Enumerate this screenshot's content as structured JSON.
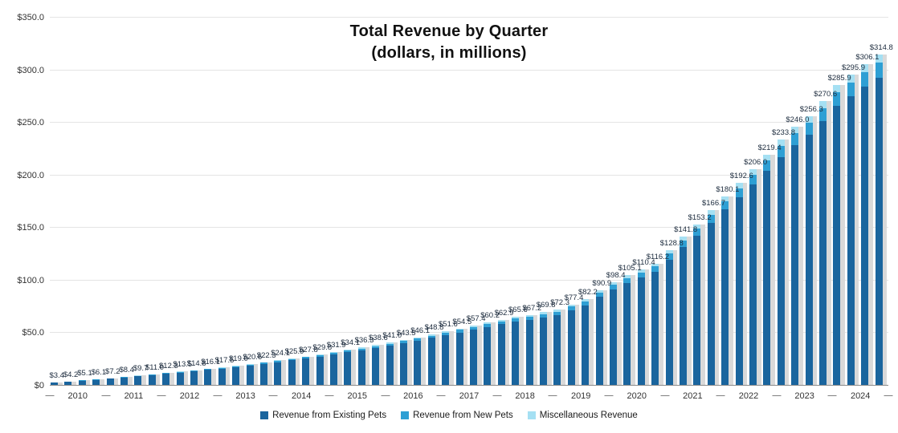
{
  "title": {
    "line1": "Total Revenue by Quarter",
    "line2": "(dollars, in millions)"
  },
  "y_axis": {
    "ticks": [
      {
        "label": "$350.0",
        "value": 350
      },
      {
        "label": "$300.0",
        "value": 300
      },
      {
        "label": "$250.0",
        "value": 250
      },
      {
        "label": "$200.0",
        "value": 200
      },
      {
        "label": "$150.0",
        "value": 150
      },
      {
        "label": "$100.0",
        "value": 100
      },
      {
        "label": "$50.0",
        "value": 50
      },
      {
        "label": "$0",
        "value": 0
      }
    ]
  },
  "x_axis": {
    "years": [
      "2010",
      "2011",
      "2012",
      "2013",
      "2014",
      "2015",
      "2016",
      "2017",
      "2018",
      "2019",
      "2020",
      "2021",
      "2022",
      "2023",
      "2024"
    ]
  },
  "legend": {
    "items": [
      {
        "label": "Revenue from Existing Pets",
        "color": "#1A659E"
      },
      {
        "label": "Revenue from New Pets",
        "color": "#2E9FD4"
      },
      {
        "label": "Miscellaneous Revenue",
        "color": "#A5E0F3"
      }
    ]
  },
  "colors": {
    "bar_shadow": "#D9D9D9",
    "gridline": "#E4E4E4",
    "axis_line": "#8A8A8A",
    "data_label": "#1C2B3D"
  },
  "chart_data": {
    "type": "bar",
    "stacked": true,
    "title": "Total Revenue by Quarter (dollars, in millions)",
    "x_unit": "quarter",
    "quarters_per_year": 4,
    "years": [
      "2010",
      "2011",
      "2012",
      "2013",
      "2014",
      "2015",
      "2016",
      "2017",
      "2018",
      "2019",
      "2020",
      "2021",
      "2022",
      "2023",
      "2024"
    ],
    "totals": [
      3.4,
      4.2,
      5.1,
      6.1,
      7.2,
      8.4,
      9.7,
      11.0,
      12.3,
      13.5,
      14.8,
      16.1,
      17.5,
      19.0,
      20.6,
      22.3,
      24.1,
      25.9,
      27.8,
      29.8,
      31.9,
      34.1,
      36.3,
      38.6,
      41.0,
      43.5,
      46.1,
      48.8,
      51.6,
      54.5,
      57.4,
      60.2,
      62.9,
      65.6,
      67.2,
      69.8,
      72.3,
      77.4,
      82.2,
      90.9,
      98.4,
      105.1,
      110.4,
      116.2,
      128.8,
      141.8,
      153.2,
      166.7,
      180.1,
      192.6,
      206.0,
      219.4,
      233.8,
      246.0,
      256.3,
      270.6,
      285.9,
      295.9,
      306.1,
      314.8
    ],
    "series": [
      {
        "name": "Revenue from Existing Pets",
        "key": "existing-pets",
        "color": "#1A659E",
        "fraction_of_total": 0.93
      },
      {
        "name": "Revenue from New Pets",
        "key": "new-pets",
        "color": "#2E9FD4",
        "fraction_of_total": 0.045
      },
      {
        "name": "Miscellaneous Revenue",
        "key": "miscellaneous",
        "color": "#A5E0F3",
        "fraction_of_total": 0.025
      }
    ],
    "data_label_format": "$0.0 (totals shown above each bar)",
    "ylim": [
      0,
      350
    ],
    "y_step": 50,
    "grid": true,
    "legend_position": "bottom"
  }
}
